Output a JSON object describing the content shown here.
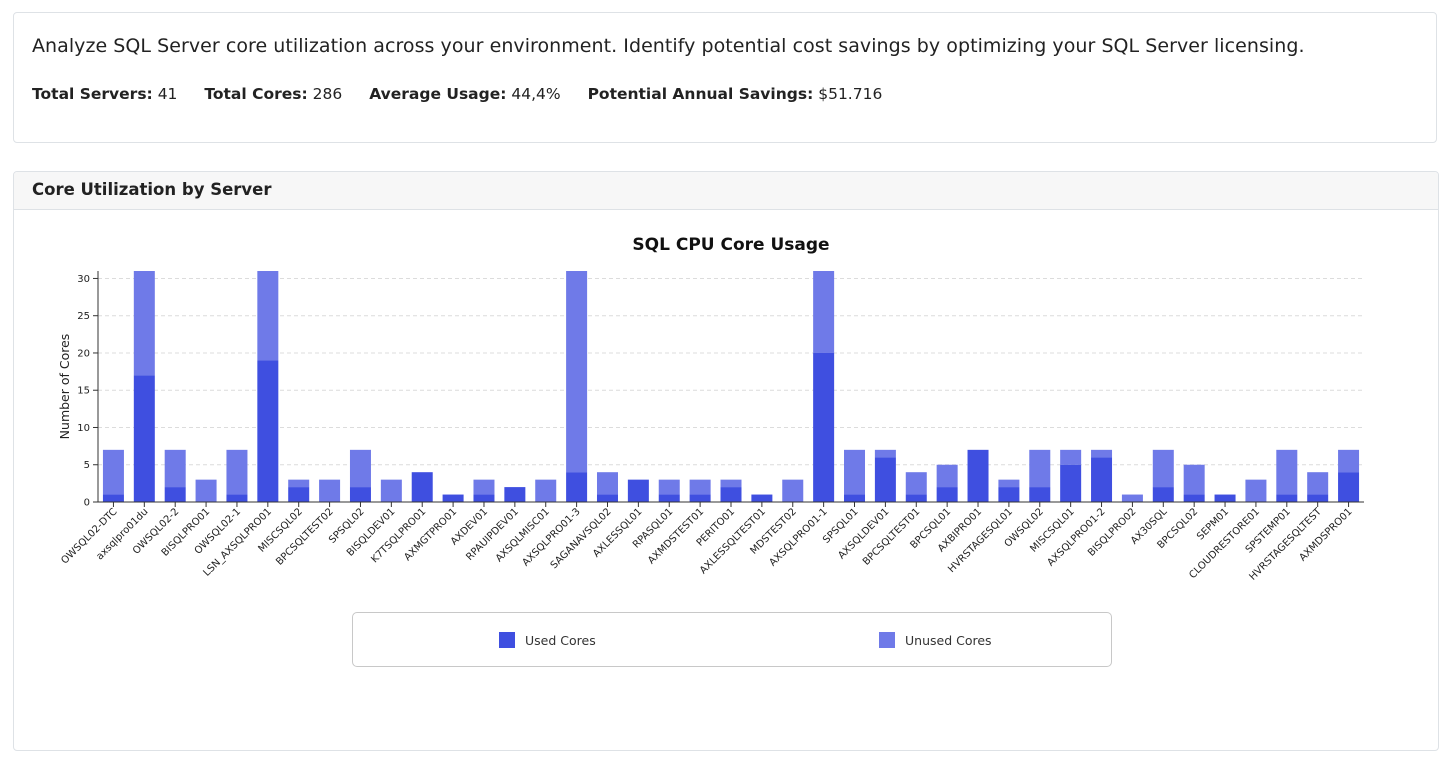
{
  "summary": {
    "description": "Analyze SQL Server core utilization across your environment. Identify potential cost savings by optimizing your SQL Server licensing.",
    "total_servers_label": "Total Servers:",
    "total_servers_value": "41",
    "total_cores_label": "Total Cores:",
    "total_cores_value": "286",
    "average_usage_label": "Average Usage:",
    "average_usage_value": "44,4%",
    "savings_label": "Potential Annual Savings:",
    "savings_value": "$51.716"
  },
  "panel": {
    "title": "Core Utilization by Server"
  },
  "colors": {
    "used": "#3f4fe0",
    "unused": "#6f7ae8"
  },
  "chart_data": {
    "type": "bar",
    "stacked": true,
    "title": "SQL CPU Core Usage",
    "xlabel": "",
    "ylabel": "Number of Cores",
    "ylim": [
      0,
      31
    ],
    "yticks": [
      0,
      5,
      10,
      15,
      20,
      25,
      30
    ],
    "grid": true,
    "legend_position": "bottom",
    "categories": [
      "OWSQL02-DTC",
      "axsqlpro01du",
      "OWSQL02-2",
      "BISQLPRO01",
      "OWSQL02-1",
      "LSN_AXSQLPRO01",
      "MISCSQL02",
      "BPCSQLTEST02",
      "SPSQL02",
      "BISQLDEV01",
      "K7TSQLPRO01",
      "AXMGTPRO01",
      "AXDEV01",
      "RPAUIPDEV01",
      "AXSQLMISC01",
      "AXSQLPRO01-3",
      "SAGANAVSQL02",
      "AXLESSQL01",
      "RPASQL01",
      "AXMDSTEST01",
      "PERITO01",
      "AXLESSQLTEST01",
      "MDSTEST02",
      "AXSQLPRO01-1",
      "SPSQL01",
      "AXSQLDEV01",
      "BPCSQLTEST01",
      "BPCSQL01",
      "AXBIPRO01",
      "HVRSTAGESQL01",
      "OWSQL02",
      "MISCSQL01",
      "AXSQLPRO01-2",
      "BISQLPRO02",
      "AX30SQL",
      "BPCSQL02",
      "SEPM01",
      "CLOUDRESTORE01",
      "SPSTEMP01",
      "HVRSTAGESQLTEST",
      "AXMDSPRO01"
    ],
    "series": [
      {
        "name": "Used Cores",
        "values": [
          1,
          17,
          2,
          0,
          1,
          19,
          2,
          0,
          2,
          0,
          4,
          1,
          1,
          2,
          0,
          4,
          1,
          3,
          1,
          1,
          2,
          1,
          0,
          20,
          1,
          6,
          1,
          2,
          7,
          2,
          2,
          5,
          6,
          0,
          2,
          1,
          1,
          0,
          1,
          1,
          4
        ]
      },
      {
        "name": "Unused Cores",
        "values": [
          6,
          14,
          5,
          3,
          6,
          12,
          1,
          3,
          5,
          3,
          0,
          0,
          2,
          0,
          3,
          27,
          3,
          0,
          2,
          2,
          1,
          0,
          3,
          11,
          6,
          1,
          3,
          3,
          0,
          1,
          5,
          2,
          1,
          1,
          5,
          4,
          0,
          3,
          6,
          3,
          3
        ]
      }
    ]
  }
}
